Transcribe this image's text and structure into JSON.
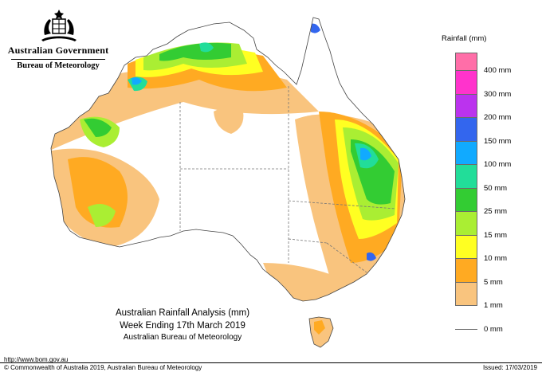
{
  "branding": {
    "government": "Australian Government",
    "bureau": "Bureau of Meteorology"
  },
  "legend": {
    "title": "Rainfall (mm)",
    "items": [
      {
        "label": "",
        "color": "#ff6ea8"
      },
      {
        "label": "400 mm",
        "color": "#ff33cc"
      },
      {
        "label": "300 mm",
        "color": "#bb33ee"
      },
      {
        "label": "200 mm",
        "color": "#3366ee"
      },
      {
        "label": "150 mm",
        "color": "#11aaff"
      },
      {
        "label": "100 mm",
        "color": "#22dd99"
      },
      {
        "label": "50 mm",
        "color": "#33cc33"
      },
      {
        "label": "25 mm",
        "color": "#aaee33"
      },
      {
        "label": "15 mm",
        "color": "#ffff22"
      },
      {
        "label": "10 mm",
        "color": "#ffaa22"
      },
      {
        "label": "5 mm",
        "color": "#f9c47e"
      },
      {
        "label": "1 mm",
        "color": "#ffffff"
      },
      {
        "label": "0 mm",
        "color": ""
      }
    ]
  },
  "caption": {
    "line1": "Australian Rainfall Analysis (mm)",
    "line2": "Week Ending 17th March 2019",
    "line3": "Australian Bureau of Meteorology"
  },
  "footer": {
    "url": "http://www.bom.gov.au",
    "copyright": "© Commonwealth of Australia 2019, Australian Bureau of Meteorology",
    "issued": "Issued: 17/03/2019"
  },
  "map_colors": {
    "outline": "#444444",
    "border": "#777777",
    "low": "#f9c47e",
    "mid": "#ffaa22",
    "medium": "#ffff22",
    "light_green": "#aaee33",
    "green": "#33cc33",
    "teal": "#22dd99",
    "cyan": "#11aaff",
    "blue": "#3366ee"
  }
}
